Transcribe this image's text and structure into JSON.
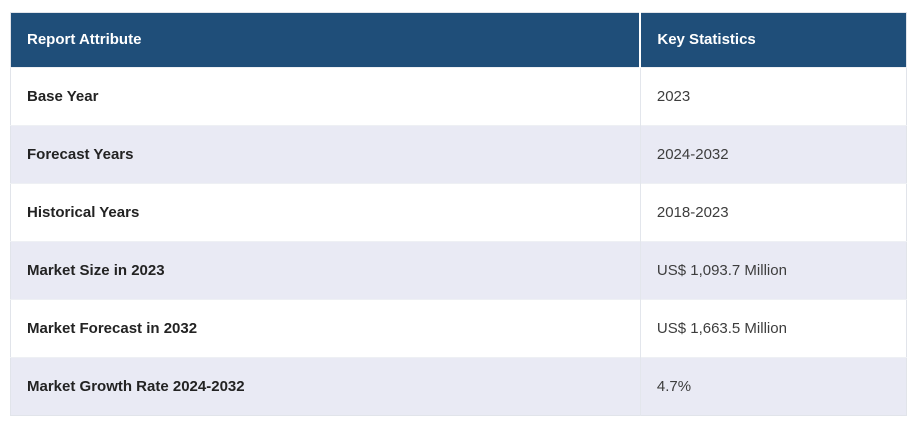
{
  "table": {
    "columns": [
      {
        "label": "Report Attribute"
      },
      {
        "label": "Key Statistics"
      }
    ],
    "rows": [
      {
        "attribute": "Base Year",
        "value": "2023"
      },
      {
        "attribute": "Forecast Years",
        "value": "2024-2032"
      },
      {
        "attribute": "Historical Years",
        "value": "2018-2023"
      },
      {
        "attribute": "Market Size in 2023",
        "value": "US$ 1,093.7 Million"
      },
      {
        "attribute": "Market Forecast in 2032",
        "value": "US$ 1,663.5 Million"
      },
      {
        "attribute": "Market Growth Rate 2024-2032",
        "value": "4.7%"
      }
    ]
  },
  "colors": {
    "header_bg": "#1f4e79",
    "header_text": "#ffffff",
    "row_alt_bg": "#e9eaf4",
    "row_bg": "#ffffff",
    "label_text": "#232323",
    "value_text": "#3d3d3d"
  },
  "chart_data": {
    "type": "table",
    "title": "",
    "columns": [
      "Report Attribute",
      "Key Statistics"
    ],
    "rows": [
      [
        "Base Year",
        "2023"
      ],
      [
        "Forecast Years",
        "2024-2032"
      ],
      [
        "Historical Years",
        "2018-2023"
      ],
      [
        "Market Size in 2023",
        "US$ 1,093.7 Million"
      ],
      [
        "Market Forecast in 2032",
        "US$ 1,663.5 Million"
      ],
      [
        "Market Growth Rate 2024-2032",
        "4.7%"
      ]
    ],
    "market_size_2023_usd_million": 1093.7,
    "market_forecast_2032_usd_million": 1663.5,
    "market_growth_rate_cagr_percent": 4.7
  }
}
